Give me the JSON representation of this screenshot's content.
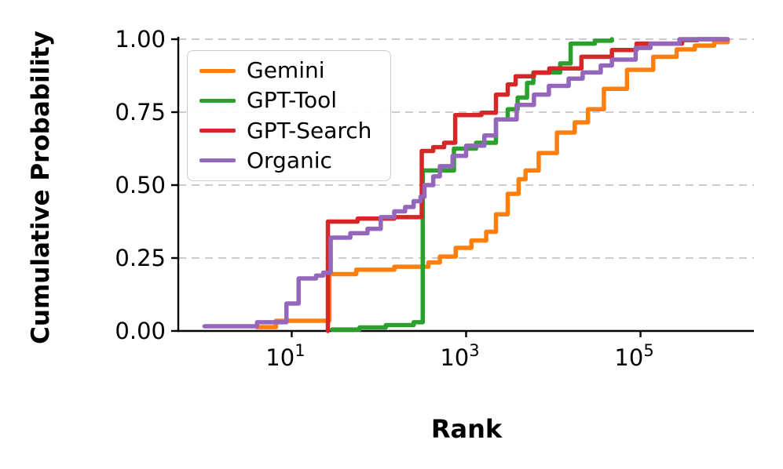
{
  "chart_data": {
    "type": "line",
    "title": "",
    "xlabel": "Rank",
    "ylabel": "Cumulative Probability",
    "x_scale": "log",
    "xlim": [
      0.5,
      2000000
    ],
    "ylim": [
      0.0,
      1.0
    ],
    "grid": "horizontal-dashed",
    "grid_color": "#cccccc",
    "legend_position": "upper-left",
    "x_ticks": [
      {
        "base": "10",
        "exp": "1",
        "value": 10
      },
      {
        "base": "10",
        "exp": "3",
        "value": 1000
      },
      {
        "base": "10",
        "exp": "5",
        "value": 100000
      }
    ],
    "y_ticks": [
      {
        "label": "0.00",
        "value": 0.0
      },
      {
        "label": "0.25",
        "value": 0.25
      },
      {
        "label": "0.50",
        "value": 0.5
      },
      {
        "label": "0.75",
        "value": 0.75
      },
      {
        "label": "1.00",
        "value": 1.0
      }
    ],
    "y_gridlines": [
      0.25,
      0.5,
      0.75,
      1.0
    ],
    "series": [
      {
        "name": "Gemini",
        "color": "#ff7f0e",
        "step": true,
        "points": [
          [
            4,
            0.013
          ],
          [
            6.6,
            0.035
          ],
          [
            27,
            0.195
          ],
          [
            55,
            0.21
          ],
          [
            150,
            0.22
          ],
          [
            370,
            0.235
          ],
          [
            500,
            0.255
          ],
          [
            760,
            0.285
          ],
          [
            1150,
            0.31
          ],
          [
            1700,
            0.34
          ],
          [
            2200,
            0.4
          ],
          [
            3000,
            0.47
          ],
          [
            4000,
            0.52
          ],
          [
            4800,
            0.55
          ],
          [
            6800,
            0.61
          ],
          [
            11000,
            0.68
          ],
          [
            17600,
            0.715
          ],
          [
            25000,
            0.76
          ],
          [
            38000,
            0.83
          ],
          [
            70000,
            0.895
          ],
          [
            140000,
            0.94
          ],
          [
            260000,
            0.965
          ],
          [
            420000,
            0.978
          ],
          [
            700000,
            0.99
          ],
          [
            1000000,
            1.0
          ]
        ]
      },
      {
        "name": "GPT-Tool",
        "color": "#2ca02c",
        "step": true,
        "points": [
          [
            29,
            0.005
          ],
          [
            60,
            0.012
          ],
          [
            120,
            0.02
          ],
          [
            250,
            0.03
          ],
          [
            318,
            0.55
          ],
          [
            725,
            0.625
          ],
          [
            1300,
            0.645
          ],
          [
            2200,
            0.725
          ],
          [
            3000,
            0.76
          ],
          [
            3900,
            0.8
          ],
          [
            5000,
            0.85
          ],
          [
            5900,
            0.886
          ],
          [
            12000,
            0.917
          ],
          [
            15800,
            0.985
          ],
          [
            30000,
            0.995
          ],
          [
            47000,
            1.0
          ]
        ]
      },
      {
        "name": "GPT-Search",
        "color": "#d62728",
        "step": true,
        "points": [
          [
            26,
            0.0
          ],
          [
            26,
            0.375
          ],
          [
            57,
            0.385
          ],
          [
            150,
            0.39
          ],
          [
            310,
            0.617
          ],
          [
            420,
            0.63
          ],
          [
            560,
            0.645
          ],
          [
            750,
            0.74
          ],
          [
            1500,
            0.748
          ],
          [
            2200,
            0.81
          ],
          [
            3000,
            0.845
          ],
          [
            3700,
            0.873
          ],
          [
            6000,
            0.885
          ],
          [
            9000,
            0.9
          ],
          [
            21000,
            0.94
          ],
          [
            47000,
            0.963
          ],
          [
            90000,
            0.985
          ],
          [
            300000,
            0.997
          ],
          [
            450000,
            1.0
          ],
          [
            1000000,
            1.0
          ]
        ]
      },
      {
        "name": "Organic",
        "color": "#9467bd",
        "step": true,
        "points": [
          [
            1,
            0.016
          ],
          [
            4,
            0.03
          ],
          [
            8.7,
            0.094
          ],
          [
            12,
            0.18
          ],
          [
            19,
            0.19
          ],
          [
            23,
            0.2
          ],
          [
            28,
            0.32
          ],
          [
            47,
            0.335
          ],
          [
            74,
            0.35
          ],
          [
            105,
            0.39
          ],
          [
            150,
            0.41
          ],
          [
            200,
            0.425
          ],
          [
            250,
            0.445
          ],
          [
            300,
            0.46
          ],
          [
            333,
            0.5
          ],
          [
            420,
            0.53
          ],
          [
            500,
            0.565
          ],
          [
            700,
            0.6
          ],
          [
            1000,
            0.635
          ],
          [
            1620,
            0.67
          ],
          [
            2200,
            0.725
          ],
          [
            3800,
            0.775
          ],
          [
            6000,
            0.81
          ],
          [
            8900,
            0.84
          ],
          [
            15000,
            0.865
          ],
          [
            21700,
            0.886
          ],
          [
            35000,
            0.91
          ],
          [
            47000,
            0.93
          ],
          [
            88000,
            0.97
          ],
          [
            130000,
            0.985
          ],
          [
            280000,
            1.0
          ],
          [
            1000000,
            1.0
          ]
        ]
      }
    ]
  }
}
